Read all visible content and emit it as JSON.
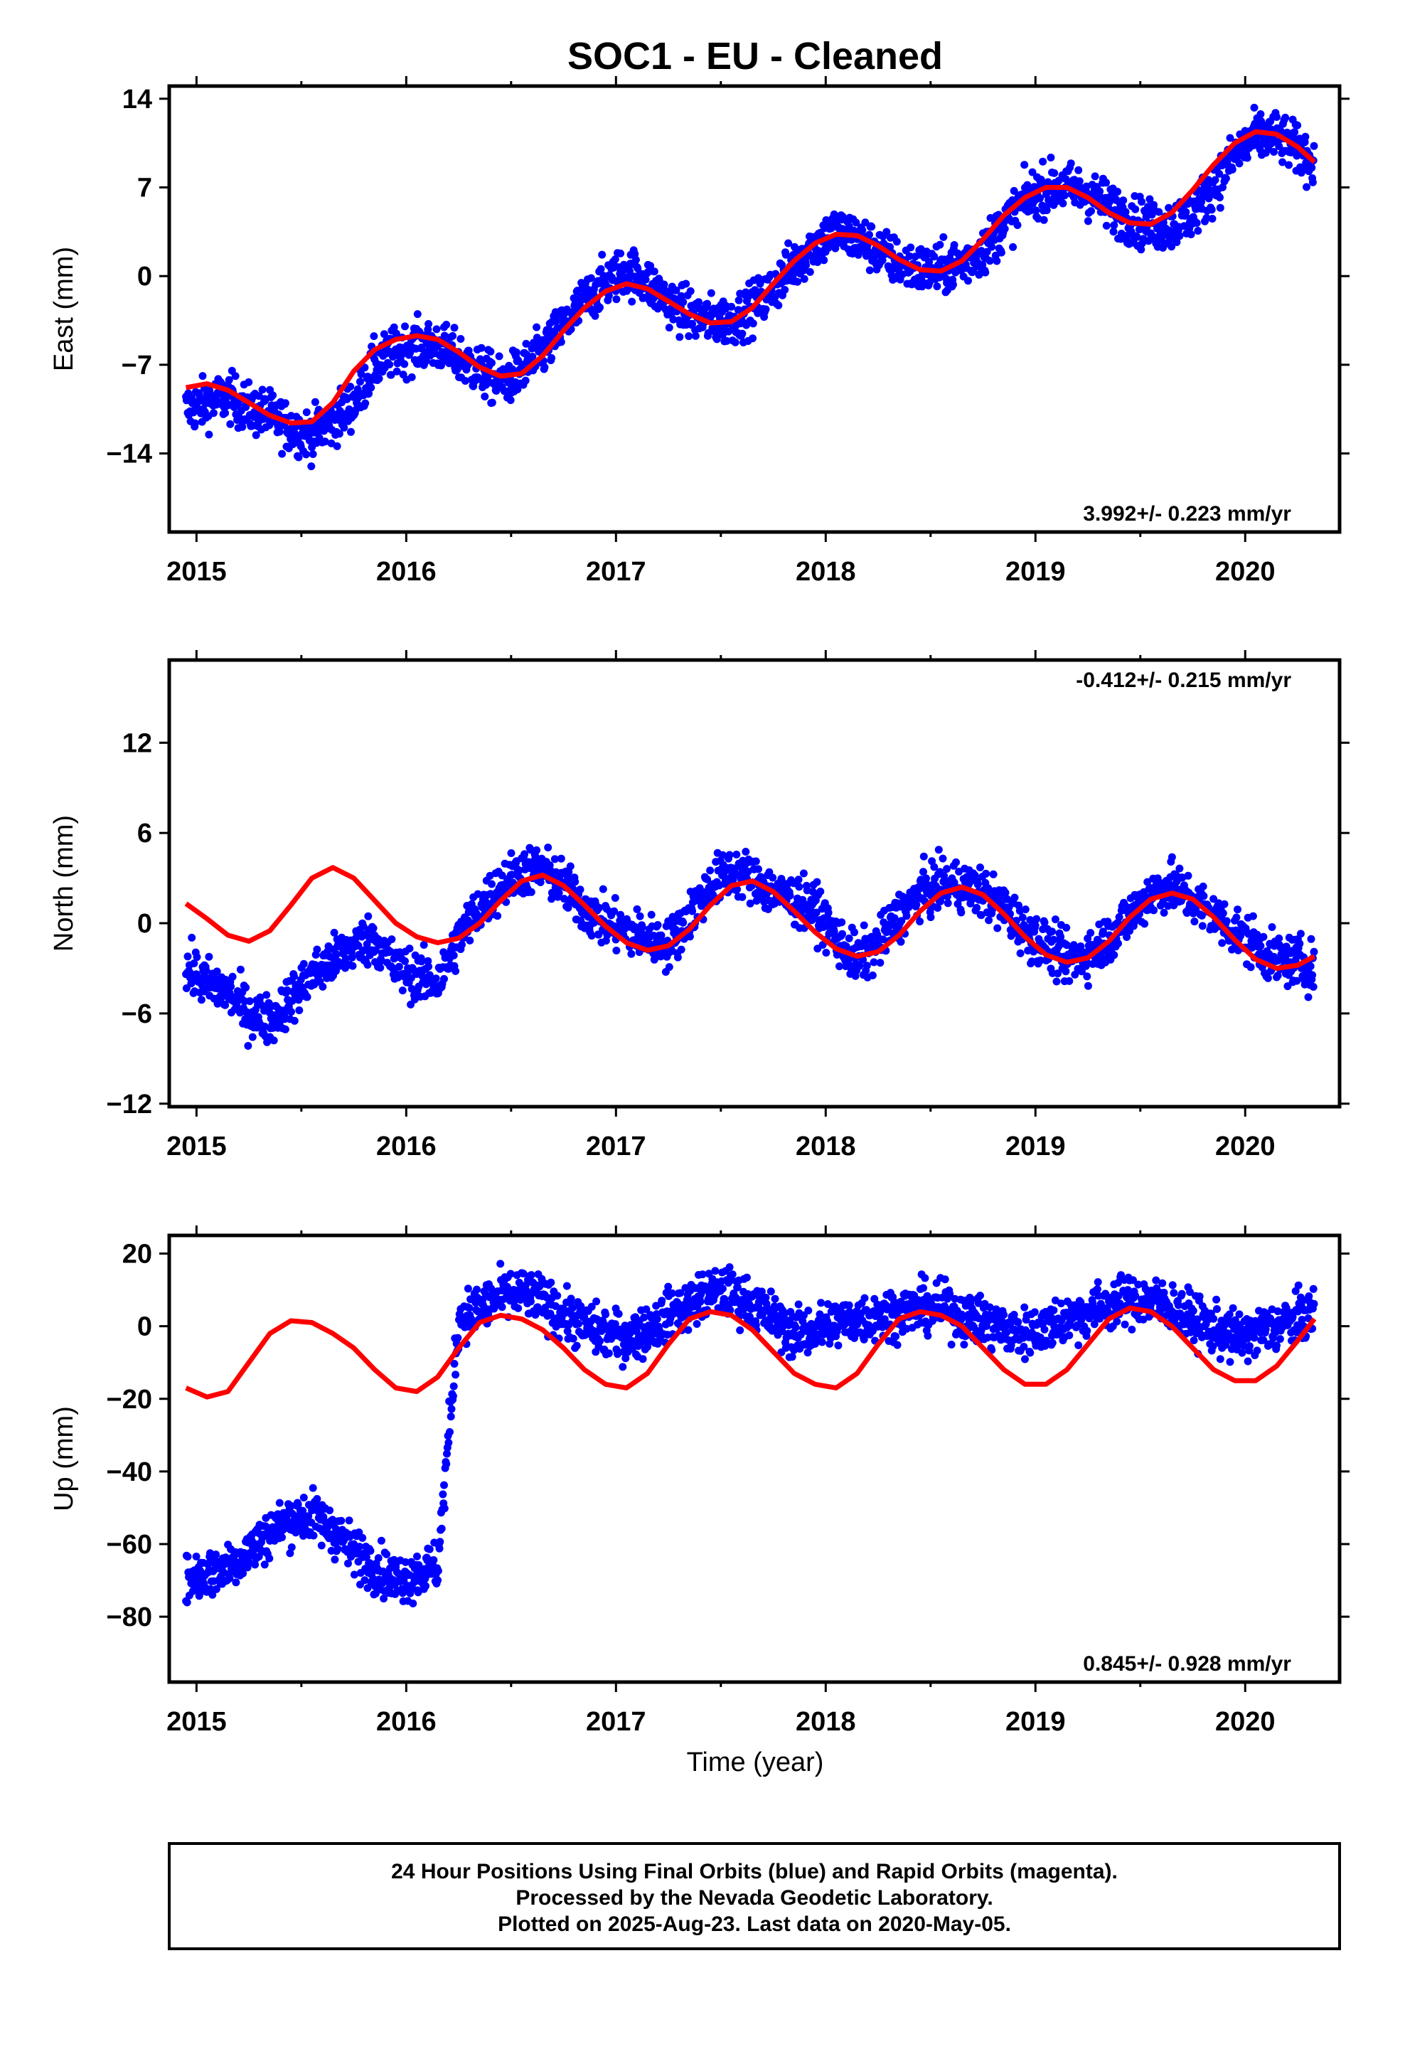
{
  "title": "SOC1  - EU - Cleaned",
  "colors": {
    "final_orbits": "#0000ff",
    "model_fit": "#ff0000",
    "frame": "#000000"
  },
  "xlabel": "Time (year)",
  "footer": {
    "line1": "24 Hour Positions Using Final Orbits (blue) and Rapid Orbits (magenta).",
    "line2": "Processed by the Nevada Geodetic Laboratory.",
    "line3": "Plotted on 2025-Aug-23. Last data on 2020-May-05."
  },
  "chart_data": [
    {
      "type": "scatter",
      "ylabel": "East (mm)",
      "rate": "3.992+/- 0.223 mm/yr",
      "rate_position": "bottom-right",
      "xlim": [
        2014.87,
        2020.45
      ],
      "ylim": [
        -20.2,
        15.0
      ],
      "xticks": [
        2015,
        2016,
        2017,
        2018,
        2019,
        2020
      ],
      "yticks": [
        14,
        7,
        0,
        -7,
        -14
      ],
      "series": [
        {
          "color": "#0000ff",
          "x": [
            2014.95,
            2015.05,
            2015.15,
            2015.25,
            2015.35,
            2015.45,
            2015.55,
            2015.65,
            2015.75,
            2015.85,
            2015.95,
            2016.05,
            2016.15,
            2016.25,
            2016.35,
            2016.45,
            2016.55,
            2016.65,
            2016.75,
            2016.85,
            2016.95,
            2017.05,
            2017.15,
            2017.25,
            2017.35,
            2017.45,
            2017.55,
            2017.65,
            2017.75,
            2017.85,
            2017.95,
            2018.05,
            2018.15,
            2018.25,
            2018.35,
            2018.45,
            2018.55,
            2018.65,
            2018.75,
            2018.85,
            2018.95,
            2019.05,
            2019.15,
            2019.25,
            2019.35,
            2019.45,
            2019.55,
            2019.65,
            2019.75,
            2019.85,
            2019.95,
            2020.05,
            2020.15,
            2020.25,
            2020.33
          ],
          "y": [
            -10.5,
            -10.0,
            -9.5,
            -10.5,
            -11.0,
            -12.0,
            -12.5,
            -11.5,
            -10.0,
            -7.0,
            -6.0,
            -5.5,
            -5.5,
            -6.5,
            -7.5,
            -8.5,
            -7.5,
            -6.0,
            -4.0,
            -2.0,
            -0.5,
            0.5,
            -0.5,
            -2.0,
            -3.0,
            -3.5,
            -3.5,
            -2.5,
            -1.0,
            1.0,
            2.5,
            3.5,
            3.0,
            2.0,
            1.0,
            0.5,
            0.5,
            1.0,
            2.0,
            4.0,
            6.0,
            7.0,
            7.0,
            6.5,
            5.5,
            4.5,
            4.0,
            4.0,
            5.0,
            7.0,
            9.5,
            11.0,
            11.0,
            10.0,
            9.0
          ]
        },
        {
          "color": "#ff0000",
          "x": [
            2014.95,
            2015.05,
            2015.15,
            2015.25,
            2015.35,
            2015.45,
            2015.55,
            2015.65,
            2015.75,
            2015.85,
            2015.95,
            2016.05,
            2016.15,
            2016.25,
            2016.35,
            2016.45,
            2016.55,
            2016.65,
            2016.75,
            2016.85,
            2016.95,
            2017.05,
            2017.15,
            2017.25,
            2017.35,
            2017.45,
            2017.55,
            2017.65,
            2017.75,
            2017.85,
            2017.95,
            2018.05,
            2018.15,
            2018.25,
            2018.35,
            2018.45,
            2018.55,
            2018.65,
            2018.75,
            2018.85,
            2018.95,
            2019.05,
            2019.15,
            2019.25,
            2019.35,
            2019.45,
            2019.55,
            2019.65,
            2019.75,
            2019.85,
            2019.95,
            2020.05,
            2020.15,
            2020.25,
            2020.33
          ],
          "y": [
            -8.8,
            -8.5,
            -9.0,
            -10.0,
            -11.0,
            -11.6,
            -11.5,
            -10.0,
            -7.5,
            -5.8,
            -5.0,
            -4.7,
            -5.0,
            -6.0,
            -7.2,
            -7.9,
            -7.7,
            -6.3,
            -4.3,
            -2.5,
            -1.2,
            -0.6,
            -1.0,
            -2.0,
            -3.0,
            -3.7,
            -3.6,
            -2.5,
            -0.6,
            1.2,
            2.6,
            3.3,
            3.2,
            2.4,
            1.3,
            0.5,
            0.4,
            1.2,
            2.9,
            4.8,
            6.2,
            7.0,
            7.0,
            6.2,
            5.0,
            4.2,
            4.1,
            5.0,
            6.8,
            8.8,
            10.5,
            11.4,
            11.2,
            10.2,
            9.0
          ]
        }
      ]
    },
    {
      "type": "scatter",
      "ylabel": "North (mm)",
      "rate": "-0.412+/- 0.215 mm/yr",
      "rate_position": "top-right",
      "xlim": [
        2014.87,
        2020.45
      ],
      "ylim": [
        -12.2,
        17.5
      ],
      "xticks": [
        2015,
        2016,
        2017,
        2018,
        2019,
        2020
      ],
      "yticks": [
        12,
        6,
        0,
        -6,
        -12
      ],
      "series": [
        {
          "color": "#0000ff",
          "x": [
            2014.95,
            2015.05,
            2015.15,
            2015.25,
            2015.35,
            2015.45,
            2015.55,
            2015.65,
            2015.75,
            2015.85,
            2015.95,
            2016.05,
            2016.15,
            2016.25,
            2016.35,
            2016.45,
            2016.55,
            2016.65,
            2016.75,
            2016.85,
            2016.95,
            2017.05,
            2017.15,
            2017.25,
            2017.35,
            2017.45,
            2017.55,
            2017.65,
            2017.75,
            2017.85,
            2017.95,
            2018.05,
            2018.15,
            2018.25,
            2018.35,
            2018.45,
            2018.55,
            2018.65,
            2018.75,
            2018.85,
            2018.95,
            2019.05,
            2019.15,
            2019.25,
            2019.35,
            2019.45,
            2019.55,
            2019.65,
            2019.75,
            2019.85,
            2019.95,
            2020.05,
            2020.15,
            2020.25,
            2020.33
          ],
          "y": [
            -3.0,
            -4.0,
            -4.5,
            -6.0,
            -6.5,
            -5.0,
            -3.5,
            -2.5,
            -1.5,
            -1.0,
            -3.0,
            -3.5,
            -4.0,
            -1.0,
            1.0,
            2.5,
            3.5,
            3.5,
            2.5,
            1.0,
            0.0,
            -0.5,
            -1.0,
            -1.5,
            0.5,
            2.5,
            3.5,
            3.0,
            2.0,
            1.5,
            1.0,
            -1.0,
            -2.5,
            -1.5,
            0.5,
            2.0,
            2.5,
            2.5,
            2.0,
            1.0,
            -0.5,
            -1.5,
            -2.5,
            -2.0,
            -1.0,
            0.5,
            2.0,
            2.5,
            1.5,
            0.5,
            -0.5,
            -1.5,
            -2.5,
            -2.5,
            -3.0
          ]
        },
        {
          "color": "#ff0000",
          "x": [
            2014.95,
            2015.05,
            2015.15,
            2015.25,
            2015.35,
            2015.45,
            2015.55,
            2015.65,
            2015.75,
            2015.85,
            2015.95,
            2016.05,
            2016.15,
            2016.25,
            2016.35,
            2016.45,
            2016.55,
            2016.65,
            2016.75,
            2016.85,
            2016.95,
            2017.05,
            2017.15,
            2017.25,
            2017.35,
            2017.45,
            2017.55,
            2017.65,
            2017.75,
            2017.85,
            2017.95,
            2018.05,
            2018.15,
            2018.25,
            2018.35,
            2018.45,
            2018.55,
            2018.65,
            2018.75,
            2018.85,
            2018.95,
            2019.05,
            2019.15,
            2019.25,
            2019.35,
            2019.45,
            2019.55,
            2019.65,
            2019.75,
            2019.85,
            2019.95,
            2020.05,
            2020.15,
            2020.25,
            2020.33
          ],
          "y": [
            1.3,
            0.3,
            -0.8,
            -1.2,
            -0.5,
            1.2,
            3.0,
            3.7,
            3.0,
            1.5,
            0.0,
            -0.9,
            -1.3,
            -1.0,
            0.0,
            1.5,
            2.8,
            3.2,
            2.5,
            1.2,
            -0.2,
            -1.3,
            -1.8,
            -1.5,
            -0.4,
            1.2,
            2.5,
            2.8,
            2.1,
            0.8,
            -0.6,
            -1.7,
            -2.2,
            -1.9,
            -0.8,
            0.8,
            2.0,
            2.4,
            1.9,
            0.6,
            -0.9,
            -2.1,
            -2.6,
            -2.3,
            -1.2,
            0.4,
            1.6,
            2.0,
            1.6,
            0.4,
            -1.1,
            -2.4,
            -3.0,
            -2.8,
            -2.2
          ]
        }
      ]
    },
    {
      "type": "scatter",
      "ylabel": "Up (mm)",
      "rate": "0.845+/- 0.928 mm/yr",
      "rate_position": "bottom-right",
      "xlim": [
        2014.87,
        2020.45
      ],
      "ylim": [
        -98,
        25
      ],
      "xticks": [
        2015,
        2016,
        2017,
        2018,
        2019,
        2020
      ],
      "yticks": [
        20,
        0,
        -20,
        -40,
        -60,
        -80
      ],
      "series": [
        {
          "color": "#0000ff",
          "x": [
            2014.95,
            2015.05,
            2015.15,
            2015.25,
            2015.35,
            2015.45,
            2015.55,
            2015.65,
            2015.75,
            2015.85,
            2015.95,
            2016.05,
            2016.15,
            2016.25,
            2016.35,
            2016.45,
            2016.55,
            2016.65,
            2016.75,
            2016.85,
            2016.95,
            2017.05,
            2017.15,
            2017.25,
            2017.35,
            2017.45,
            2017.55,
            2017.65,
            2017.75,
            2017.85,
            2017.95,
            2018.05,
            2018.15,
            2018.25,
            2018.35,
            2018.45,
            2018.55,
            2018.65,
            2018.75,
            2018.85,
            2018.95,
            2019.05,
            2019.15,
            2019.25,
            2019.35,
            2019.45,
            2019.55,
            2019.65,
            2019.75,
            2019.85,
            2019.95,
            2020.05,
            2020.15,
            2020.25,
            2020.33
          ],
          "y": [
            -70,
            -68,
            -66,
            -62,
            -57,
            -53,
            -52,
            -56,
            -62,
            -66,
            -70,
            -68,
            -66,
            2,
            5,
            8,
            9,
            7,
            3,
            0,
            -2,
            -3,
            -1,
            3,
            6,
            9,
            9,
            6,
            2,
            -2,
            -1,
            1,
            2,
            3,
            4,
            5,
            5,
            3,
            1,
            -1,
            -2,
            0,
            2,
            4,
            6,
            7,
            7,
            5,
            2,
            -1,
            -3,
            -2,
            0,
            2,
            4
          ]
        },
        {
          "color": "#ff0000",
          "x": [
            2014.95,
            2015.05,
            2015.15,
            2015.25,
            2015.35,
            2015.45,
            2015.55,
            2015.65,
            2015.75,
            2015.85,
            2015.95,
            2016.05,
            2016.15,
            2016.25,
            2016.35,
            2016.45,
            2016.55,
            2016.65,
            2016.75,
            2016.85,
            2016.95,
            2017.05,
            2017.15,
            2017.25,
            2017.35,
            2017.45,
            2017.55,
            2017.65,
            2017.75,
            2017.85,
            2017.95,
            2018.05,
            2018.15,
            2018.25,
            2018.35,
            2018.45,
            2018.55,
            2018.65,
            2018.75,
            2018.85,
            2018.95,
            2019.05,
            2019.15,
            2019.25,
            2019.35,
            2019.45,
            2019.55,
            2019.65,
            2019.75,
            2019.85,
            2019.95,
            2020.05,
            2020.15,
            2020.25,
            2020.33
          ],
          "y": [
            -17,
            -19.5,
            -18,
            -10,
            -2,
            1.5,
            1,
            -2,
            -6,
            -12,
            -17,
            -18,
            -14,
            -6,
            1,
            3,
            2,
            -1,
            -6,
            -12,
            -16,
            -17,
            -13,
            -5,
            2,
            4,
            3,
            -1,
            -7,
            -13,
            -16,
            -17,
            -13,
            -5,
            2,
            4,
            3,
            0,
            -6,
            -12,
            -16,
            -16,
            -12,
            -5,
            2,
            5,
            4,
            0,
            -6,
            -12,
            -15,
            -15,
            -11,
            -4,
            2
          ]
        }
      ]
    }
  ]
}
